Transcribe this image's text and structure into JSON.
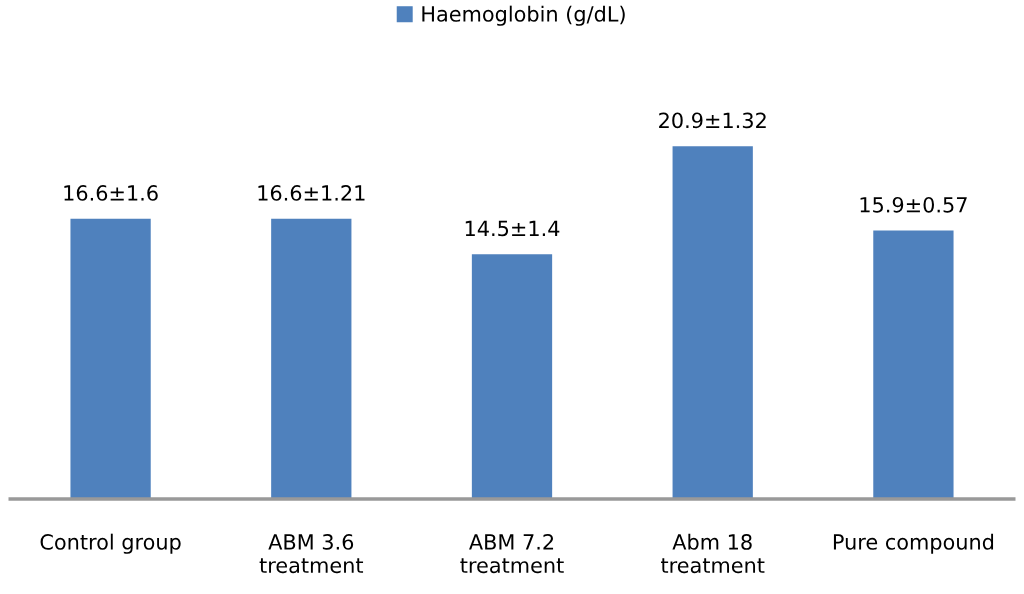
{
  "chart_data": {
    "type": "bar",
    "categories": [
      "Control group",
      "ABM 3.6\ntreatment",
      "ABM 7.2\ntreatment",
      "Abm 18\ntreatment",
      "Pure compound"
    ],
    "series": [
      {
        "name": "Haemoglobin (g/dL)",
        "color": "#4f81bd",
        "values": [
          16.6,
          16.6,
          14.5,
          20.9,
          15.9
        ],
        "value_labels": [
          "16.6±1.6",
          "16.6±1.21",
          "14.5±1.4",
          "20.9±1.32",
          "15.9±0.57"
        ]
      }
    ],
    "tick_labels": "x",
    "grid": false,
    "legend": "top"
  }
}
